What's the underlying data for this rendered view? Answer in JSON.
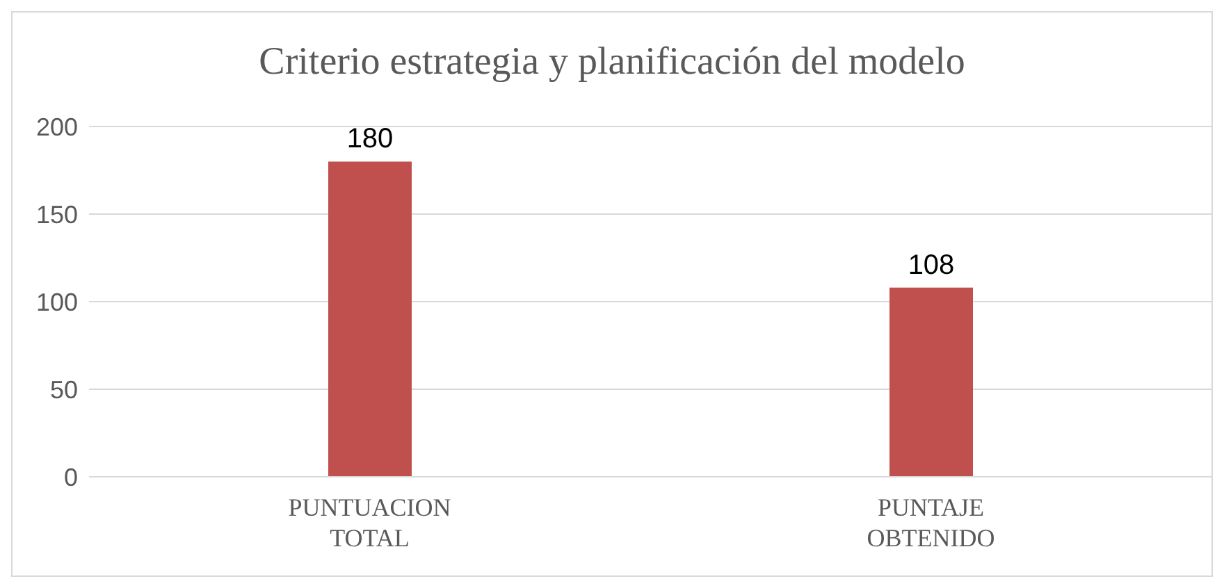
{
  "chart_data": {
    "type": "bar",
    "title": "Criterio estrategia y planificación del modelo",
    "categories": [
      "PUNTUACION TOTAL",
      "PUNTAJE OBTENIDO"
    ],
    "values": [
      180,
      108
    ],
    "color": "#c0504d",
    "ylim": [
      0,
      200
    ],
    "yticks": [
      0,
      50,
      100,
      150,
      200
    ],
    "grid": "y",
    "data_labels": true
  }
}
